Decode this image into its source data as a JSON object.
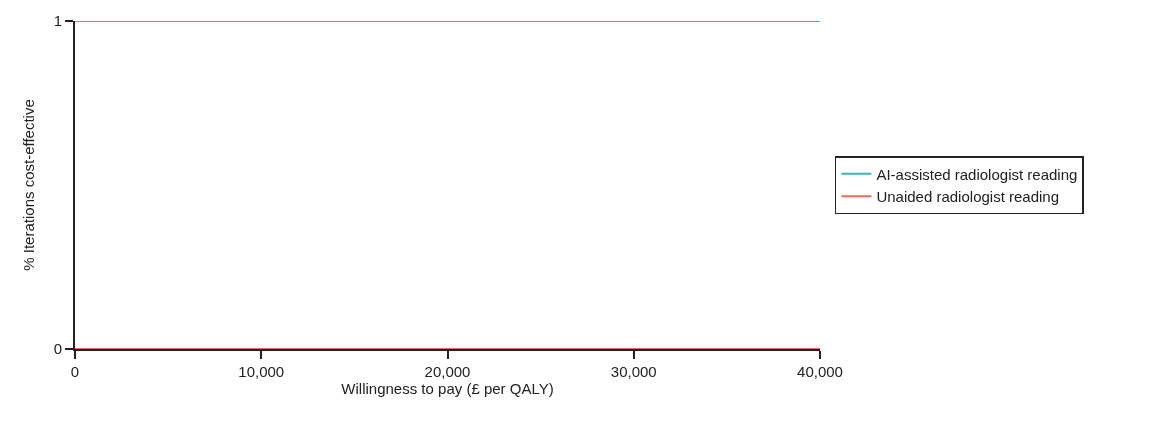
{
  "chart_data": {
    "type": "line",
    "xlabel": "Willingness to pay (£ per QALY)",
    "ylabel": "% Iterations cost-effective",
    "x": [
      0,
      40000
    ],
    "series": [
      {
        "name": "AI-assisted radiologist reading",
        "color": "#3cb4b4",
        "values": [
          1,
          1
        ]
      },
      {
        "name": "Unaided radiologist reading",
        "color": "#f0695a",
        "values": [
          0,
          0
        ]
      }
    ],
    "xlim": [
      0,
      40000
    ],
    "xticks": [
      0,
      {
        "value": 10000,
        "label": "10,000"
      },
      {
        "value": 20000,
        "label": "20,000"
      },
      {
        "value": 30000,
        "label": "30,000"
      },
      {
        "value": 40000,
        "label": "40,000"
      }
    ],
    "ylim": [
      0,
      1
    ],
    "yticks": [
      0,
      1
    ],
    "legend": "right",
    "marker": "none",
    "line_style": "solid"
  }
}
